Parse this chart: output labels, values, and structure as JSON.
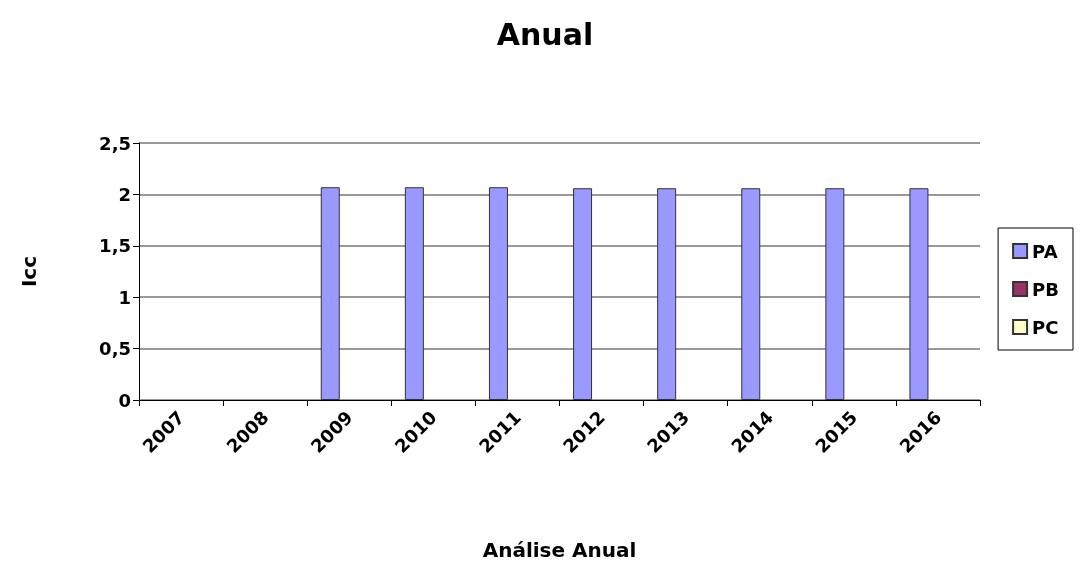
{
  "chart_data": {
    "type": "bar",
    "title": "Anual",
    "xlabel": "Análise Anual",
    "ylabel": "Icc",
    "categories": [
      "2007",
      "2008",
      "2009",
      "2010",
      "2011",
      "2012",
      "2013",
      "2014",
      "2015",
      "2016"
    ],
    "series": [
      {
        "name": "PA",
        "color": "#9999ff",
        "values": [
          null,
          null,
          2.07,
          2.07,
          2.07,
          2.06,
          2.06,
          2.06,
          2.06,
          2.06
        ]
      },
      {
        "name": "PB",
        "color": "#993366",
        "values": [
          null,
          null,
          null,
          null,
          null,
          null,
          null,
          null,
          null,
          null
        ]
      },
      {
        "name": "PC",
        "color": "#ffffcc",
        "values": [
          null,
          null,
          null,
          null,
          null,
          null,
          null,
          null,
          null,
          null
        ]
      }
    ],
    "ylim": [
      0,
      2.5
    ],
    "yticks": [
      0,
      {
        "value": 0.5,
        "label": "0,5"
      },
      1,
      {
        "value": 1.5,
        "label": "1,5"
      },
      2,
      {
        "value": 2.5,
        "label": "2,5"
      }
    ],
    "grid": "y",
    "legend": "right"
  }
}
